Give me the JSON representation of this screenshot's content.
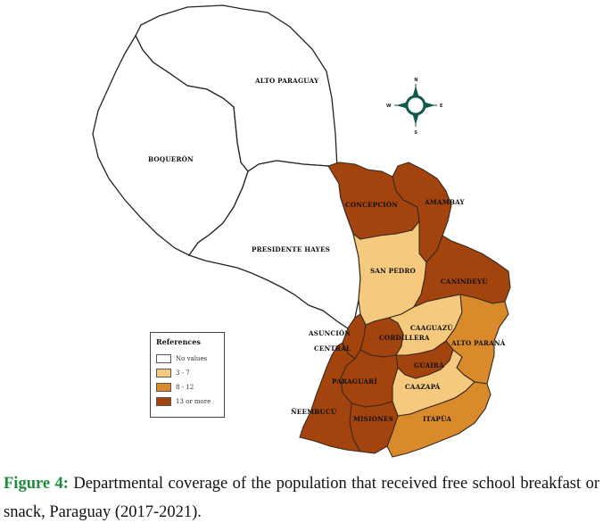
{
  "map": {
    "labels": {
      "alto_paraguay": "ALTO PARAGUAY",
      "boqueron": "BOQUERÓN",
      "presidente_hayes": "PRESIDENTE HAYES",
      "concepcion": "CONCEPCIÓN",
      "amambay": "AMAMBAY",
      "san_pedro": "SAN PEDRO",
      "canindeyu": "CANINDEYÚ",
      "asuncion": "ASUNCIÓN",
      "central": "CENTRAL",
      "cordillera": "CORDILLERA",
      "caaguazu": "CAAGUAZÚ",
      "alto_parana": "ALTO PARANÁ",
      "guaira": "GUAIRÁ",
      "caazapa": "CAAZAPÁ",
      "paraguari": "PARAGUARÍ",
      "neembucu": "ÑEEMBUCÚ",
      "misiones": "MISIONES",
      "itapua": "ITAPÚA"
    },
    "compass": {
      "n": "N",
      "s": "S",
      "e": "E",
      "w": "W"
    },
    "colors": {
      "no_values": "#ffffff",
      "range_3_7": "#f5c97e",
      "range_8_12": "#d98a2b",
      "range_13_more": "#a3440f"
    }
  },
  "legend": {
    "title": "References",
    "items": [
      {
        "label": "No values",
        "color": "#ffffff"
      },
      {
        "label": "3 - 7",
        "color": "#f5c97e"
      },
      {
        "label": "8 - 12",
        "color": "#d98a2b"
      },
      {
        "label": "13 or more",
        "color": "#a3440f"
      }
    ]
  },
  "caption": {
    "figure_label": "Figure 4:",
    "text": " Departmental coverage of the population that received free school breakfast or snack, Paraguay (2017-2021)."
  }
}
